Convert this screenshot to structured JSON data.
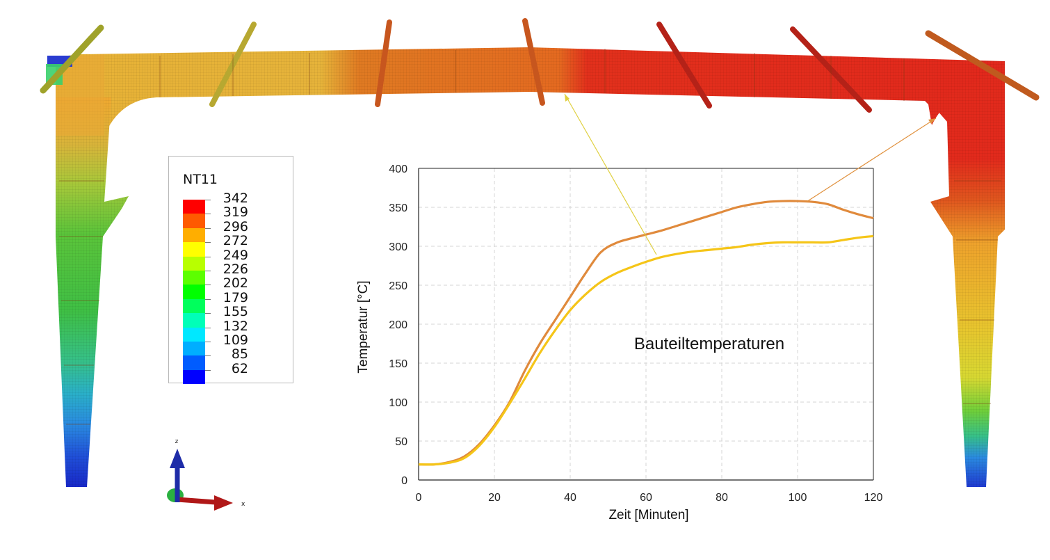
{
  "legend": {
    "title": "NT11",
    "values": [
      "342",
      "319",
      "296",
      "272",
      "249",
      "226",
      "202",
      "179",
      "155",
      "132",
      "109",
      "85",
      "62"
    ],
    "colors": [
      "#ff0000",
      "#ff5a00",
      "#ffae00",
      "#ffff00",
      "#b8ff00",
      "#5cff00",
      "#00ff00",
      "#00ff5c",
      "#00ffb8",
      "#00e8ff",
      "#00aeff",
      "#005cff",
      "#0000ff"
    ]
  },
  "axes_triad": {
    "z_label": "z",
    "x_label": "x"
  },
  "chart_data": {
    "type": "line",
    "title": "Bauteiltemperaturen",
    "xlabel": "Zeit [Minuten]",
    "ylabel": "Temperatur  [°C]",
    "xlim": [
      0,
      120
    ],
    "ylim": [
      0,
      400
    ],
    "xticks": [
      0,
      20,
      40,
      60,
      80,
      100,
      120
    ],
    "yticks": [
      0,
      50,
      100,
      150,
      200,
      250,
      300,
      350,
      400
    ],
    "grid": true,
    "series": [
      {
        "color": "#e08a3c",
        "x": [
          0,
          4,
          8,
          12,
          16,
          20,
          24,
          28,
          32,
          36,
          40,
          44,
          48,
          52,
          56,
          60,
          64,
          68,
          72,
          76,
          80,
          84,
          88,
          92,
          96,
          100,
          104,
          108,
          112,
          116,
          120
        ],
        "y": [
          20,
          20,
          23,
          30,
          46,
          70,
          100,
          140,
          175,
          205,
          235,
          265,
          292,
          304,
          310,
          315,
          320,
          326,
          332,
          338,
          344,
          350,
          354,
          357,
          358,
          358,
          357,
          354,
          347,
          341,
          336
        ]
      },
      {
        "color": "#f5c518",
        "x": [
          0,
          4,
          8,
          12,
          16,
          20,
          24,
          28,
          32,
          36,
          40,
          44,
          48,
          52,
          56,
          60,
          64,
          68,
          72,
          76,
          80,
          84,
          88,
          92,
          96,
          100,
          104,
          108,
          112,
          116,
          120
        ],
        "y": [
          20,
          20,
          22,
          28,
          44,
          68,
          98,
          130,
          163,
          192,
          218,
          238,
          254,
          265,
          273,
          280,
          286,
          290,
          293,
          295,
          297,
          299,
          302,
          304,
          305,
          305,
          305,
          305,
          308,
          311,
          313
        ]
      }
    ]
  }
}
